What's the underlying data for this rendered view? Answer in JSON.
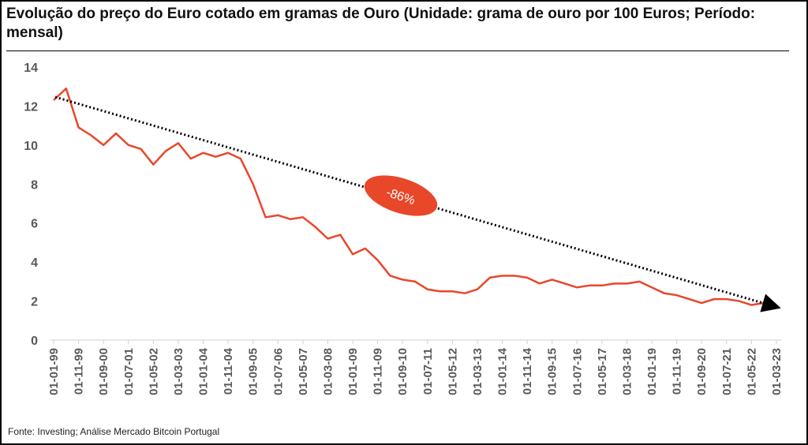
{
  "chart_data": {
    "type": "line",
    "title": "Evolução do preço do Euro cotado em gramas de Ouro (Unidade: grama de ouro por 100 Euros; Período: mensal)",
    "source": "Fonte: Investing; Análise Mercado Bitcoin Portugal",
    "annotation": "-86%",
    "categories": [
      "01-01-99",
      null,
      "01-11-99",
      null,
      "01-09-00",
      null,
      "01-07-01",
      null,
      "01-05-02",
      null,
      "01-03-03",
      null,
      "01-01-04",
      null,
      "01-11-04",
      null,
      "01-09-05",
      null,
      "01-07-06",
      null,
      "01-05-07",
      null,
      "01-03-08",
      null,
      "01-01-09",
      null,
      "01-11-09",
      null,
      "01-09-10",
      null,
      "01-07-11",
      null,
      "01-05-12",
      null,
      "01-03-13",
      null,
      "01-01-14",
      null,
      "01-11-14",
      null,
      "01-09-15",
      null,
      "01-07-16",
      null,
      "01-05-17",
      null,
      "01-03-18",
      null,
      "01-01-19",
      null,
      "01-11-19",
      null,
      "01-09-20",
      null,
      "01-07-21",
      null,
      "01-05-22",
      null,
      "01-03-23"
    ],
    "series": [
      {
        "color": "#e8472a",
        "values": [
          12.3,
          12.9,
          10.9,
          10.5,
          10.0,
          10.6,
          10.0,
          9.8,
          9.0,
          9.7,
          10.1,
          9.3,
          9.6,
          9.4,
          9.6,
          9.3,
          8.0,
          6.3,
          6.4,
          6.2,
          6.3,
          5.8,
          5.2,
          5.4,
          4.4,
          4.7,
          4.1,
          3.3,
          3.1,
          3.0,
          2.6,
          2.5,
          2.5,
          2.4,
          2.6,
          3.2,
          3.3,
          3.3,
          3.2,
          2.9,
          3.1,
          2.9,
          2.7,
          2.8,
          2.8,
          2.9,
          2.9,
          3.0,
          2.7,
          2.4,
          2.3,
          2.1,
          1.9,
          2.1,
          2.1,
          2.0,
          1.8,
          1.9,
          1.8
        ]
      }
    ],
    "ylim": [
      0,
      14
    ],
    "yticks": [
      0,
      2,
      4,
      6,
      8,
      10,
      12,
      14
    ],
    "grid": false
  }
}
